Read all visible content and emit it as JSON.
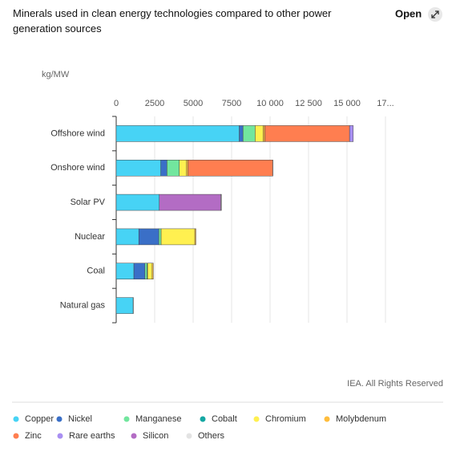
{
  "chart_data": {
    "type": "stacked_bar_horizontal",
    "title": "Minerals used in clean energy technologies compared to other power generation sources",
    "button": "Open",
    "unit_label": "kg/MW",
    "source": "IEA. All Rights Reserved",
    "categories": [
      "Offshore wind",
      "Onshore wind",
      "Solar PV",
      "Nuclear",
      "Coal",
      "Natural gas"
    ],
    "series": [
      {
        "name": "Copper",
        "color": "#47d3f5",
        "values": [
          8000,
          2900,
          2800,
          1470,
          1150,
          1100
        ]
      },
      {
        "name": "Nickel",
        "color": "#3a6fc7",
        "values": [
          240,
          400,
          0,
          1300,
          720,
          16
        ]
      },
      {
        "name": "Manganese",
        "color": "#72e69e",
        "values": [
          790,
          800,
          0,
          150,
          140,
          0
        ]
      },
      {
        "name": "Cobalt",
        "color": "#15a7a3",
        "values": [
          0,
          0,
          0,
          0,
          30,
          0
        ]
      },
      {
        "name": "Chromium",
        "color": "#fff050",
        "values": [
          525,
          470,
          0,
          2190,
          300,
          0
        ]
      },
      {
        "name": "Molybdenum",
        "color": "#ffbd3c",
        "values": [
          110,
          100,
          0,
          70,
          70,
          0
        ]
      },
      {
        "name": "Zinc",
        "color": "#ff7e50",
        "values": [
          5500,
          5500,
          0,
          0,
          0,
          0
        ]
      },
      {
        "name": "Rare earths",
        "color": "#a98ff2",
        "values": [
          240,
          14,
          0,
          0,
          0,
          0
        ]
      },
      {
        "name": "Silicon",
        "color": "#b36cc4",
        "values": [
          0,
          0,
          4000,
          0,
          0,
          0
        ]
      },
      {
        "name": "Others",
        "color": "#e3e3e3",
        "values": [
          0,
          0,
          40,
          0,
          0,
          0
        ]
      }
    ],
    "xlim": [
      0,
      17500
    ],
    "xticks": [
      0,
      2500,
      5000,
      7500,
      {
        "value": 10000,
        "label": "10 000"
      },
      {
        "value": 12500,
        "label": "12 500"
      },
      {
        "value": 15000,
        "label": "15 000"
      },
      {
        "value": 17500,
        "label": "17..."
      }
    ],
    "grid": true
  }
}
